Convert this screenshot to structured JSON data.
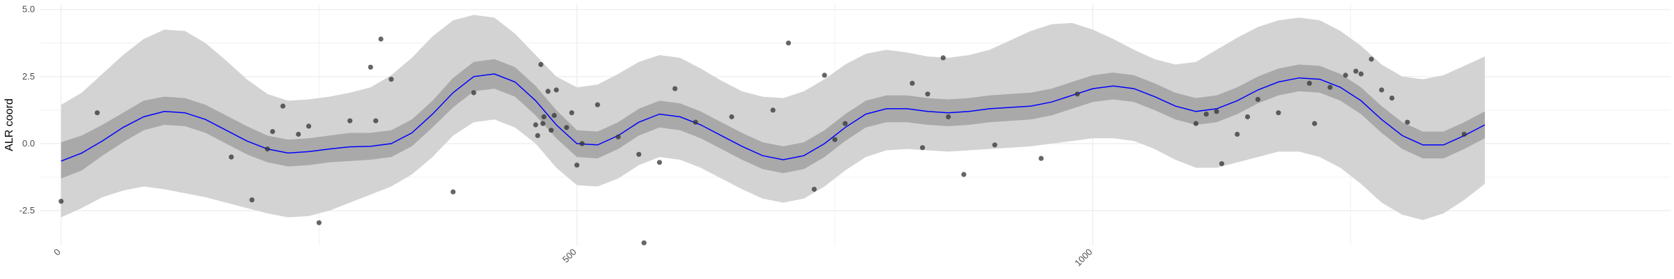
{
  "chart_data": {
    "type": "line",
    "title": "",
    "xlabel": "",
    "ylabel": "ALR coord",
    "xlim": [
      -20,
      1560
    ],
    "ylim": [
      -3.8,
      5.2
    ],
    "grid": true,
    "x_ticks": [
      0,
      500,
      1000
    ],
    "x_minor_ticks": [
      250,
      750,
      1250
    ],
    "x_tick_labels": [
      "0",
      "500",
      "1000"
    ],
    "y_ticks": [
      -2.5,
      0.0,
      2.5,
      5.0
    ],
    "y_minor_ticks": [
      -1.25,
      1.25,
      3.75
    ],
    "y_tick_labels": [
      "-2.5",
      "0.0",
      "2.5",
      "5.0"
    ],
    "colors": {
      "line": "#0000ff",
      "inner_band": "#a9a9a9",
      "outer_band": "#d3d3d3",
      "points": "#333333",
      "grid": "#ebebeb"
    },
    "series": [
      {
        "x": [
          0,
          20,
          40,
          60,
          80,
          100,
          120,
          140,
          160,
          180,
          200,
          220,
          240,
          260,
          280,
          300,
          320,
          340,
          360,
          380,
          400,
          420,
          440,
          460,
          480,
          500,
          520,
          540,
          560,
          580,
          600,
          620,
          640,
          660,
          680,
          700,
          720,
          740,
          760,
          780,
          800,
          820,
          840,
          860,
          880,
          900,
          920,
          940,
          960,
          980,
          1000,
          1020,
          1040,
          1060,
          1080,
          1100,
          1120,
          1140,
          1160,
          1180,
          1200,
          1220,
          1240,
          1260,
          1280,
          1300,
          1320,
          1340,
          1360,
          1380
        ],
        "y": [
          -0.65,
          -0.35,
          0.1,
          0.6,
          1.0,
          1.2,
          1.15,
          0.9,
          0.5,
          0.1,
          -0.2,
          -0.35,
          -0.3,
          -0.2,
          -0.12,
          -0.1,
          0.0,
          0.4,
          1.1,
          1.9,
          2.5,
          2.6,
          2.3,
          1.6,
          0.7,
          0.0,
          -0.05,
          0.3,
          0.8,
          1.1,
          1.0,
          0.7,
          0.3,
          -0.1,
          -0.45,
          -0.6,
          -0.45,
          0.0,
          0.6,
          1.1,
          1.3,
          1.3,
          1.2,
          1.15,
          1.2,
          1.3,
          1.35,
          1.4,
          1.55,
          1.8,
          2.05,
          2.15,
          2.05,
          1.75,
          1.4,
          1.2,
          1.3,
          1.6,
          2.0,
          2.3,
          2.45,
          2.4,
          2.1,
          1.6,
          0.9,
          0.3,
          -0.05,
          -0.05,
          0.3,
          0.7
        ],
        "lower_inner": [
          -1.3,
          -1.0,
          -0.45,
          0.05,
          0.5,
          0.7,
          0.65,
          0.4,
          0.0,
          -0.4,
          -0.7,
          -0.85,
          -0.8,
          -0.7,
          -0.65,
          -0.6,
          -0.5,
          -0.1,
          0.6,
          1.35,
          1.95,
          2.05,
          1.75,
          1.05,
          0.2,
          -0.5,
          -0.55,
          -0.2,
          0.3,
          0.6,
          0.5,
          0.2,
          -0.2,
          -0.6,
          -0.95,
          -1.1,
          -0.95,
          -0.5,
          0.1,
          0.6,
          0.8,
          0.8,
          0.7,
          0.65,
          0.7,
          0.8,
          0.85,
          0.9,
          1.05,
          1.3,
          1.55,
          1.65,
          1.55,
          1.25,
          0.9,
          0.7,
          0.8,
          1.1,
          1.5,
          1.8,
          1.95,
          1.9,
          1.6,
          1.1,
          0.4,
          -0.2,
          -0.55,
          -0.55,
          -0.2,
          0.2
        ],
        "upper_inner": [
          0.05,
          0.3,
          0.7,
          1.15,
          1.6,
          1.75,
          1.7,
          1.45,
          1.05,
          0.65,
          0.3,
          0.15,
          0.2,
          0.3,
          0.4,
          0.4,
          0.5,
          0.9,
          1.6,
          2.45,
          3.05,
          3.15,
          2.85,
          2.15,
          1.25,
          0.5,
          0.45,
          0.8,
          1.3,
          1.6,
          1.5,
          1.2,
          0.8,
          0.4,
          0.05,
          -0.1,
          0.05,
          0.5,
          1.1,
          1.6,
          1.8,
          1.8,
          1.7,
          1.65,
          1.7,
          1.8,
          1.85,
          1.9,
          2.05,
          2.3,
          2.55,
          2.65,
          2.55,
          2.25,
          1.9,
          1.7,
          1.8,
          2.1,
          2.5,
          2.8,
          2.95,
          2.9,
          2.6,
          2.1,
          1.4,
          0.8,
          0.45,
          0.45,
          0.8,
          1.2
        ],
        "lower_outer": [
          -2.75,
          -2.4,
          -2.0,
          -1.75,
          -1.6,
          -1.7,
          -1.85,
          -2.0,
          -2.2,
          -2.4,
          -2.6,
          -2.75,
          -2.7,
          -2.5,
          -2.2,
          -1.9,
          -1.6,
          -1.15,
          -0.5,
          0.3,
          0.8,
          0.9,
          0.6,
          0.0,
          -0.9,
          -1.55,
          -1.6,
          -1.3,
          -0.8,
          -0.5,
          -0.6,
          -0.9,
          -1.3,
          -1.7,
          -2.05,
          -2.2,
          -2.05,
          -1.6,
          -1.0,
          -0.5,
          -0.25,
          -0.2,
          -0.25,
          -0.3,
          -0.25,
          -0.2,
          -0.15,
          -0.1,
          0.0,
          0.1,
          0.2,
          0.2,
          0.1,
          -0.2,
          -0.6,
          -0.9,
          -0.9,
          -0.7,
          -0.5,
          -0.3,
          -0.3,
          -0.5,
          -0.9,
          -1.5,
          -2.2,
          -2.65,
          -2.85,
          -2.6,
          -2.1,
          -1.5
        ],
        "upper_outer": [
          1.45,
          1.9,
          2.6,
          3.3,
          3.9,
          4.25,
          4.2,
          3.75,
          3.1,
          2.4,
          1.85,
          1.6,
          1.65,
          1.75,
          1.9,
          2.1,
          2.55,
          3.2,
          4.0,
          4.6,
          4.8,
          4.7,
          4.1,
          3.3,
          2.5,
          2.1,
          2.2,
          2.6,
          3.05,
          3.3,
          3.2,
          2.8,
          2.35,
          1.95,
          1.75,
          1.7,
          1.95,
          2.4,
          2.95,
          3.35,
          3.5,
          3.4,
          3.25,
          3.2,
          3.3,
          3.5,
          3.85,
          4.2,
          4.45,
          4.5,
          4.25,
          3.9,
          3.5,
          3.15,
          2.95,
          3.05,
          3.5,
          3.95,
          4.35,
          4.6,
          4.7,
          4.6,
          4.2,
          3.65,
          2.95,
          2.5,
          2.4,
          2.55,
          2.9,
          3.25
        ]
      }
    ],
    "points": {
      "x": [
        0,
        35,
        165,
        185,
        200,
        205,
        215,
        230,
        240,
        250,
        280,
        300,
        305,
        310,
        320,
        380,
        400,
        460,
        462,
        465,
        467,
        468,
        472,
        475,
        478,
        480,
        490,
        495,
        500,
        505,
        520,
        540,
        560,
        565,
        580,
        595,
        615,
        650,
        690,
        705,
        730,
        740,
        750,
        760,
        825,
        835,
        840,
        855,
        860,
        875,
        905,
        950,
        985,
        1100,
        1110,
        1120,
        1125,
        1140,
        1150,
        1160,
        1180,
        1210,
        1215,
        1230,
        1245,
        1255,
        1260,
        1270,
        1280,
        1290,
        1305,
        1360
      ],
      "y": [
        -2.15,
        1.15,
        -0.5,
        -2.1,
        -0.2,
        0.45,
        1.4,
        0.35,
        0.65,
        -2.95,
        0.85,
        2.85,
        0.85,
        3.9,
        2.4,
        -1.8,
        1.9,
        0.7,
        0.3,
        2.95,
        0.75,
        1.0,
        1.95,
        0.5,
        1.05,
        2.0,
        0.6,
        1.15,
        -0.8,
        0.0,
        1.45,
        0.25,
        -0.4,
        -3.7,
        -0.7,
        2.05,
        0.8,
        1.0,
        1.25,
        3.75,
        -1.7,
        2.55,
        0.15,
        0.75,
        2.25,
        -0.15,
        1.85,
        3.2,
        1.0,
        -1.15,
        -0.05,
        -0.55,
        1.85,
        0.75,
        1.1,
        1.2,
        -0.75,
        0.35,
        1.0,
        1.65,
        1.15,
        2.25,
        0.75,
        2.1,
        2.55,
        2.7,
        2.6,
        3.15,
        2.0,
        1.7,
        0.8,
        0.35
      ]
    }
  }
}
